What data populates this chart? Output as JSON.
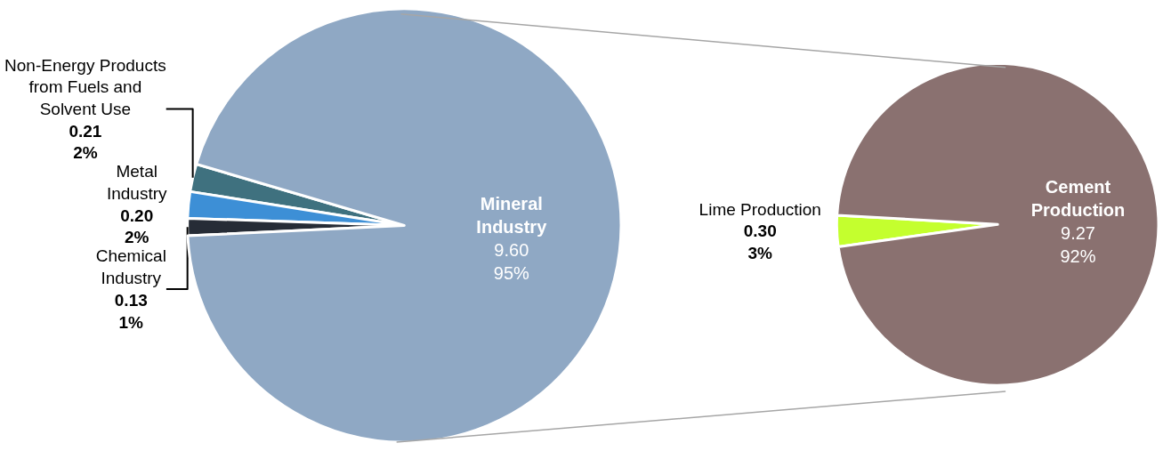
{
  "chart_data": [
    {
      "type": "pie",
      "categories": [
        "Non-Energy Products from Fuels and Solvent Use",
        "Metal Industry",
        "Chemical Industry",
        "Mineral Industry"
      ],
      "values": [
        0.21,
        0.2,
        0.13,
        9.6
      ],
      "colors": [
        "#3f717f",
        "#3d8fd6",
        "#262c36",
        "#8fa8c4"
      ],
      "value_labels": [
        "0.21\n2%",
        "0.20\n2%",
        "0.13\n1%",
        "9.60\n95%"
      ]
    },
    {
      "type": "pie",
      "categories": [
        "Lime Production",
        "Cement Production"
      ],
      "values": [
        0.3,
        9.27
      ],
      "colors": [
        "#c4ff2e",
        "#8a7170"
      ],
      "value_labels": [
        "0.30\n3%",
        "9.27\n92%"
      ]
    }
  ]
}
